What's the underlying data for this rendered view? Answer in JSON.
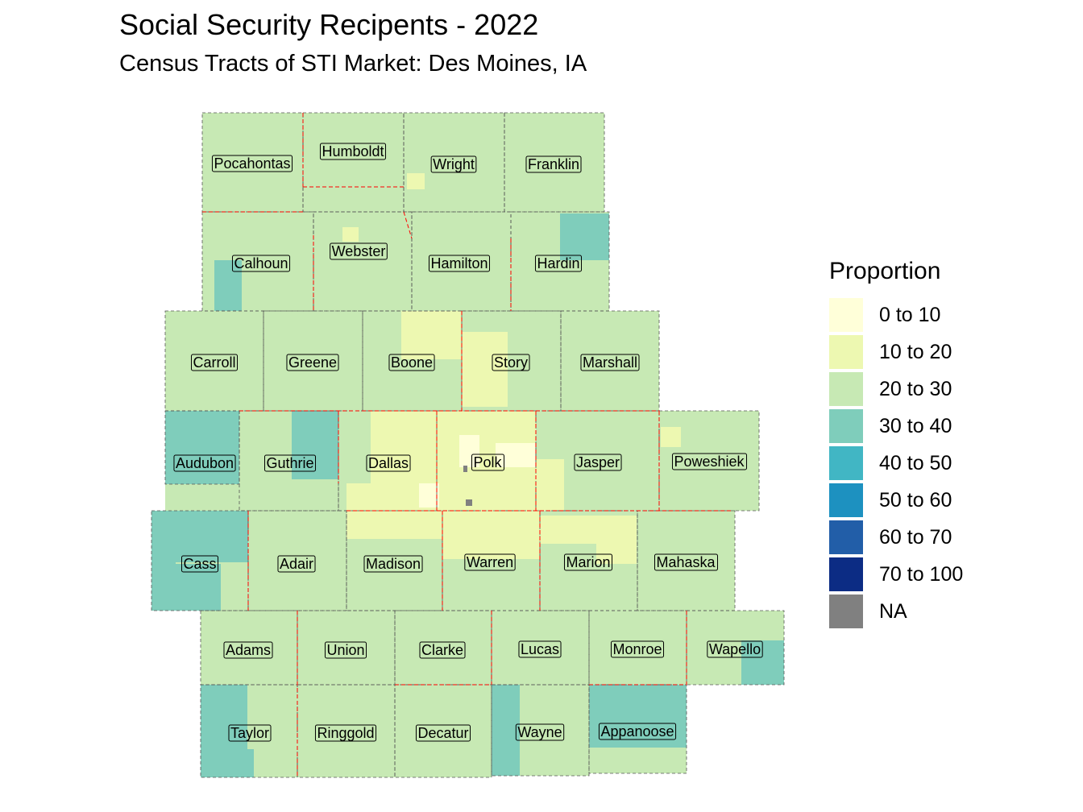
{
  "title": "Social Security Recipents - 2022",
  "subtitle": "Census Tracts of STI Market: Des Moines, IA",
  "legend": {
    "title": "Proportion",
    "items": [
      {
        "label": "0 to 10",
        "color": "#ffffd9"
      },
      {
        "label": "10 to 20",
        "color": "#edf8b1"
      },
      {
        "label": "20 to 30",
        "color": "#c7e9b4"
      },
      {
        "label": "30 to 40",
        "color": "#7fcdbb"
      },
      {
        "label": "40 to 50",
        "color": "#41b6c4"
      },
      {
        "label": "50 to 60",
        "color": "#1d91c0"
      },
      {
        "label": "60 to 70",
        "color": "#225ea8"
      },
      {
        "label": "70 to 100",
        "color": "#0c2c84"
      },
      {
        "label": "NA",
        "color": "#808080"
      }
    ]
  },
  "border_colors": {
    "market_boundary": "#ff0000",
    "county_boundary": "#555555"
  },
  "counties": [
    "Pocahontas",
    "Humboldt",
    "Wright",
    "Franklin",
    "Calhoun",
    "Webster",
    "Hamilton",
    "Hardin",
    "Carroll",
    "Greene",
    "Boone",
    "Story",
    "Marshall",
    "Audubon",
    "Guthrie",
    "Dallas",
    "Polk",
    "Jasper",
    "Poweshiek",
    "Cass",
    "Adair",
    "Madison",
    "Warren",
    "Marion",
    "Mahaska",
    "Adams",
    "Union",
    "Clarke",
    "Lucas",
    "Monroe",
    "Wapello",
    "Taylor",
    "Ringgold",
    "Decatur",
    "Wayne",
    "Appanoose"
  ]
}
